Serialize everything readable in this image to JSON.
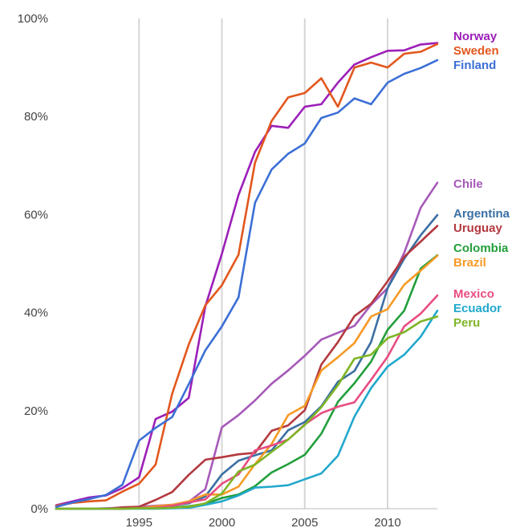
{
  "chart_data": {
    "type": "line",
    "title": "",
    "xlabel": "",
    "ylabel": "",
    "xlim": [
      1990,
      2013
    ],
    "ylim": [
      0,
      100
    ],
    "x_ticks": [
      1995,
      2000,
      2005,
      2010
    ],
    "y_ticks": [
      {
        "value": 0,
        "label": "0%"
      },
      {
        "value": 20,
        "label": "20%"
      },
      {
        "value": 40,
        "label": "40%"
      },
      {
        "value": 60,
        "label": "60%"
      },
      {
        "value": 80,
        "label": "80%"
      },
      {
        "value": 100,
        "label": "100%"
      }
    ],
    "grid": {
      "vertical": true,
      "horizontal": false
    },
    "legend_placement": "right",
    "x": [
      1990,
      1991,
      1992,
      1993,
      1994,
      1995,
      1996,
      1997,
      1998,
      1999,
      2000,
      2001,
      2002,
      2003,
      2004,
      2005,
      2006,
      2007,
      2008,
      2009,
      2010,
      2011,
      2012,
      2013
    ],
    "series": [
      {
        "name": "Norway",
        "color": "#9c1fb8",
        "values": [
          0.7,
          1.5,
          2.3,
          2.7,
          4.2,
          6.4,
          18.3,
          19.8,
          22.6,
          41.3,
          52.0,
          64.0,
          72.8,
          78.1,
          77.7,
          82.0,
          82.5,
          86.9,
          90.6,
          92.1,
          93.4,
          93.5,
          94.7,
          95.0
        ]
      },
      {
        "name": "Sweden",
        "color": "#e2571e",
        "values": [
          0.6,
          1.2,
          1.5,
          1.7,
          3.5,
          5.1,
          9.0,
          23.5,
          33.5,
          41.5,
          45.6,
          51.8,
          70.6,
          79.1,
          83.9,
          84.8,
          87.8,
          82.0,
          90.0,
          91.0,
          90.0,
          92.8,
          93.2,
          94.8
        ]
      },
      {
        "name": "Finland",
        "color": "#3c6fd6",
        "values": [
          0.4,
          1.3,
          2.0,
          2.8,
          4.9,
          13.9,
          16.5,
          18.7,
          25.4,
          32.3,
          37.2,
          43.1,
          62.4,
          69.2,
          72.4,
          74.5,
          79.7,
          80.8,
          83.7,
          82.5,
          86.9,
          88.7,
          89.9,
          91.5
        ]
      },
      {
        "name": "Chile",
        "color": "#a659b8",
        "values": [
          0.0,
          0.0,
          0.0,
          0.1,
          0.2,
          0.4,
          0.6,
          0.8,
          1.4,
          4.0,
          16.6,
          19.1,
          22.1,
          25.5,
          28.2,
          31.2,
          34.5,
          35.9,
          37.3,
          41.6,
          45.0,
          52.2,
          61.4,
          66.5
        ]
      },
      {
        "name": "Argentina",
        "color": "#3b6fa3",
        "values": [
          0.0,
          0.0,
          0.0,
          0.0,
          0.1,
          0.1,
          0.3,
          0.7,
          1.1,
          2.5,
          7.0,
          9.8,
          10.9,
          11.9,
          16.0,
          17.7,
          20.9,
          25.9,
          28.1,
          34.0,
          45.0,
          51.0,
          55.8,
          59.9
        ]
      },
      {
        "name": "Uruguay",
        "color": "#b3393f",
        "values": [
          0.0,
          0.0,
          0.0,
          0.0,
          0.3,
          0.4,
          1.8,
          3.4,
          6.9,
          10.0,
          10.5,
          11.1,
          11.4,
          15.9,
          17.0,
          20.1,
          29.4,
          34.0,
          39.3,
          41.8,
          46.4,
          51.4,
          54.5,
          57.7
        ]
      },
      {
        "name": "Colombia",
        "color": "#229f3c",
        "values": [
          0.0,
          0.0,
          0.0,
          0.0,
          0.0,
          0.1,
          0.2,
          0.3,
          0.5,
          1.0,
          2.2,
          2.9,
          4.6,
          7.4,
          9.1,
          11.0,
          15.3,
          21.8,
          25.6,
          30.0,
          36.5,
          40.4,
          49.0,
          51.7
        ]
      },
      {
        "name": "Brazil",
        "color": "#f69a25",
        "values": [
          0.0,
          0.0,
          0.0,
          0.0,
          0.0,
          0.1,
          0.5,
          0.8,
          1.5,
          2.9,
          2.9,
          4.5,
          9.1,
          13.2,
          19.1,
          21.0,
          28.2,
          30.9,
          33.8,
          39.2,
          40.7,
          45.7,
          48.6,
          51.6
        ]
      },
      {
        "name": "Mexico",
        "color": "#e84d81",
        "values": [
          0.0,
          0.0,
          0.0,
          0.0,
          0.0,
          0.1,
          0.2,
          0.6,
          1.3,
          1.9,
          5.1,
          7.0,
          11.9,
          12.9,
          14.1,
          17.2,
          19.5,
          20.8,
          21.7,
          26.3,
          31.0,
          37.2,
          39.8,
          43.5
        ]
      },
      {
        "name": "Ecuador",
        "color": "#22a8cc",
        "values": [
          0.0,
          0.0,
          0.0,
          0.0,
          0.0,
          0.0,
          0.0,
          0.1,
          0.2,
          0.8,
          1.5,
          2.7,
          4.3,
          4.5,
          4.8,
          6.0,
          7.2,
          10.8,
          18.8,
          24.6,
          29.0,
          31.4,
          35.1,
          40.4
        ]
      },
      {
        "name": "Peru",
        "color": "#7fb526",
        "values": [
          0.0,
          0.0,
          0.0,
          0.0,
          0.0,
          0.1,
          0.1,
          0.2,
          0.4,
          1.1,
          3.1,
          7.6,
          9.0,
          11.6,
          14.1,
          17.1,
          20.7,
          25.2,
          30.6,
          31.4,
          34.8,
          36.0,
          38.2,
          39.2
        ]
      }
    ],
    "legend": [
      {
        "name": "Norway",
        "color": "#9c1fb8"
      },
      {
        "name": "Sweden",
        "color": "#e2571e"
      },
      {
        "name": "Finland",
        "color": "#3c6fd6"
      },
      {
        "name": "Chile",
        "color": "#a659b8"
      },
      {
        "name": "Argentina",
        "color": "#3b6fa3"
      },
      {
        "name": "Uruguay",
        "color": "#b3393f"
      },
      {
        "name": "Colombia",
        "color": "#229f3c"
      },
      {
        "name": "Brazil",
        "color": "#f69a25"
      },
      {
        "name": "Mexico",
        "color": "#e84d81"
      },
      {
        "name": "Ecuador",
        "color": "#22a8cc"
      },
      {
        "name": "Peru",
        "color": "#7fb526"
      }
    ]
  }
}
